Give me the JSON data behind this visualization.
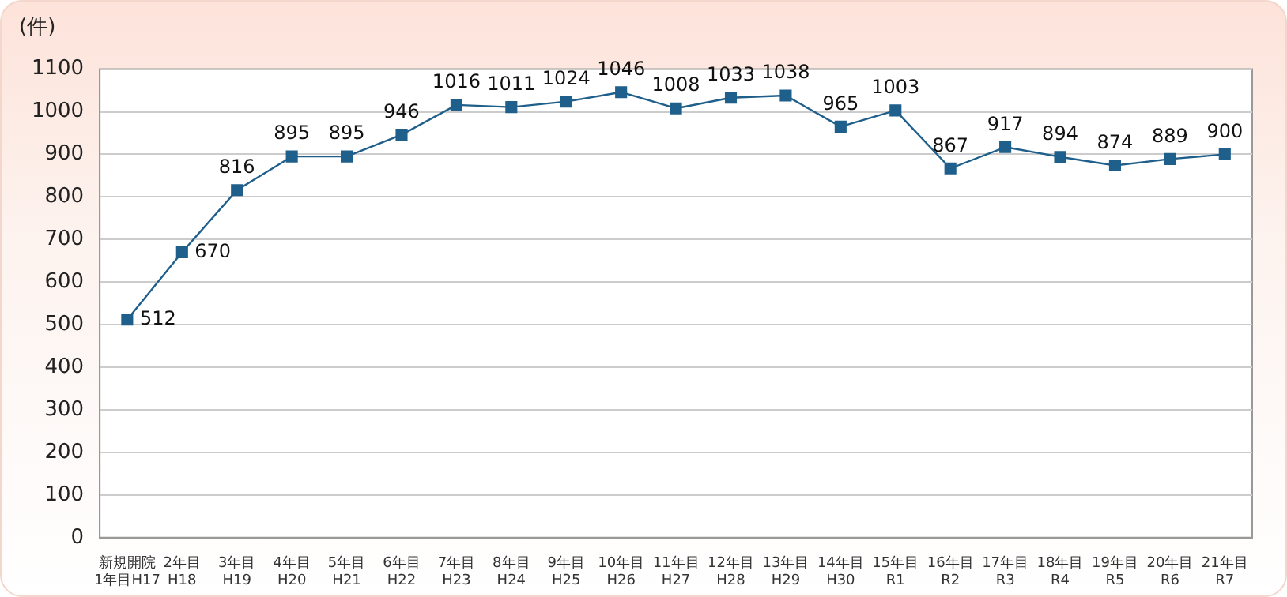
{
  "chart_data": {
    "type": "line",
    "ylabel": "(件)",
    "categories": [
      "新規開院\n1年目H17",
      "2年目\nH18",
      "3年目\nH19",
      "4年目\nH20",
      "5年目\nH21",
      "6年目\nH22",
      "7年目\nH23",
      "8年目\nH24",
      "9年目\nH25",
      "10年目\nH26",
      "11年目\nH27",
      "12年目\nH28",
      "13年目\nH29",
      "14年目\nH30",
      "15年目\nR1",
      "16年目\nR2",
      "17年目\nR3",
      "18年目\nR4",
      "19年目\nR5",
      "20年目\nR6",
      "21年目\nR7"
    ],
    "series": [
      {
        "color": "#1f5f8b",
        "values": [
          512,
          670,
          816,
          895,
          895,
          946,
          1016,
          1011,
          1024,
          1046,
          1008,
          1033,
          1038,
          965,
          1003,
          867,
          917,
          894,
          874,
          889,
          900
        ]
      }
    ],
    "ylim": [
      0,
      1100
    ],
    "yticks": [
      0,
      100,
      200,
      300,
      400,
      500,
      600,
      700,
      800,
      900,
      1000,
      1100
    ],
    "grid": "y",
    "marker": "square",
    "line_style": "solid",
    "data_labels": true
  }
}
